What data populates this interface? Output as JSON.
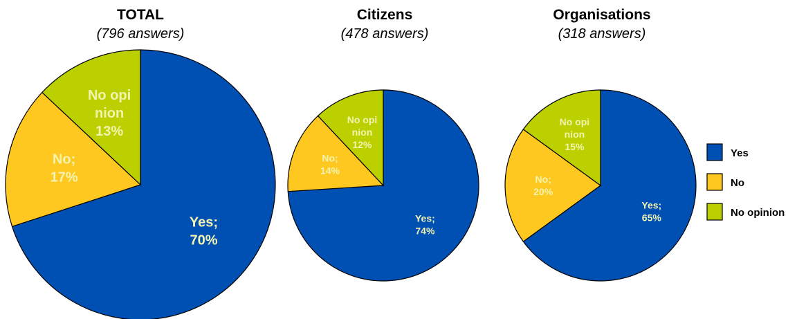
{
  "chart_data": [
    {
      "type": "pie",
      "title": "TOTAL",
      "subtitle": "(796 answers)",
      "slices": [
        {
          "label": "Yes",
          "value": 70,
          "display": "Yes;|70%"
        },
        {
          "label": "No",
          "value": 17,
          "display": "No;|17%"
        },
        {
          "label": "No opinion",
          "value": 13,
          "display": "No opi|nion|13%"
        }
      ]
    },
    {
      "type": "pie",
      "title": "Citizens",
      "subtitle": "(478 answers)",
      "slices": [
        {
          "label": "Yes",
          "value": 74,
          "display": "Yes;|74%"
        },
        {
          "label": "No",
          "value": 14,
          "display": "No;|14%"
        },
        {
          "label": "No opinion",
          "value": 12,
          "display": "No opi|nion|12%"
        }
      ]
    },
    {
      "type": "pie",
      "title": "Organisations",
      "subtitle": "(318 answers)",
      "slices": [
        {
          "label": "Yes",
          "value": 65,
          "display": "Yes;|65%"
        },
        {
          "label": "No",
          "value": 20,
          "display": "No;|20%"
        },
        {
          "label": "No opinion",
          "value": 15,
          "display": "No opi|nion|15%"
        }
      ]
    }
  ],
  "legend": [
    {
      "label": "Yes",
      "color": "#0050b4"
    },
    {
      "label": "No",
      "color": "#ffc820"
    },
    {
      "label": "No opinion",
      "color": "#bcd000"
    }
  ]
}
